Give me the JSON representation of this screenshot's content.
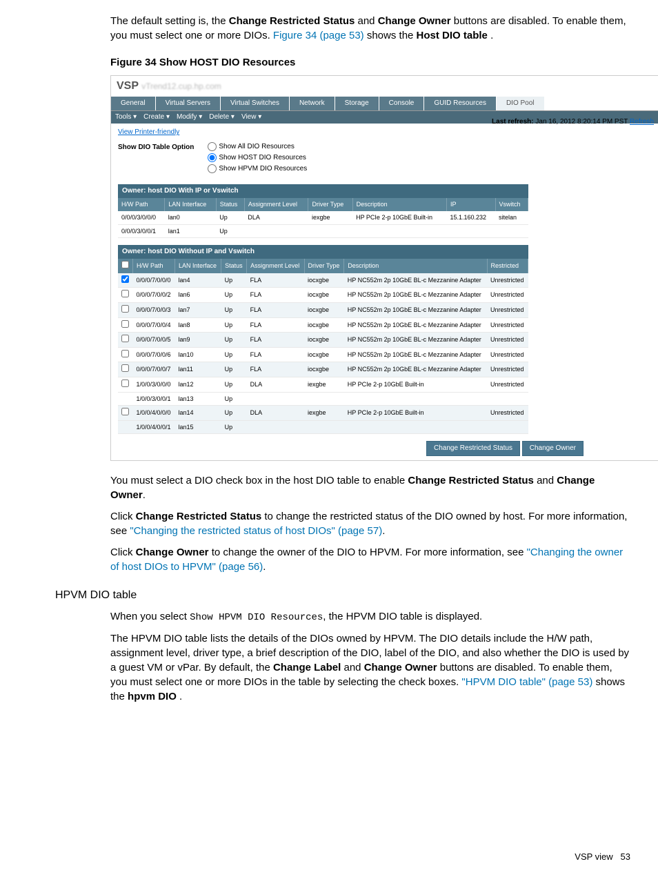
{
  "intro_p1_a": "The default setting is, the ",
  "intro_p1_b": "Change Restricted Status",
  "intro_p1_c": " and ",
  "intro_p1_d": "Change Owner",
  "intro_p1_e": " buttons are disabled. To enable them, you must select one or more DIOs. ",
  "intro_p1_link": "Figure 34 (page 53)",
  "intro_p1_f": " shows the ",
  "intro_p1_g": "Host DIO table",
  "intro_p1_h": " .",
  "fig_caption": "Figure 34 Show HOST DIO Resources",
  "vsp_title": "VSP",
  "vsp_sub": "vTrend12.cup.hp.com",
  "tabs": [
    "General",
    "Virtual Servers",
    "Virtual Switches",
    "Network",
    "Storage",
    "Console",
    "GUID Resources",
    "DIO Pool"
  ],
  "menubar": [
    "Tools  ▾",
    "Create  ▾",
    "Modify  ▾",
    "Delete  ▾",
    "View  ▾"
  ],
  "printer_friendly": "View Printer-friendly",
  "last_refresh_label": "Last refresh: ",
  "last_refresh_time": "Jan 16, 2012 8:20:14 PM PST ",
  "refresh_link": "Refresh",
  "option_label": "Show DIO Table Option",
  "radio_opts": [
    "Show All DIO Resources",
    "Show HOST DIO Resources",
    "Show HPVM DIO Resources"
  ],
  "table1_title": "Owner: host DIO With IP or Vswitch",
  "table1_headers": [
    "H/W Path",
    "LAN Interface",
    "Status",
    "Assignment Level",
    "Driver Type",
    "Description",
    "IP",
    "Vswitch"
  ],
  "table1_rows": [
    [
      "0/0/0/3/0/0/0",
      "lan0",
      "Up",
      "DLA",
      "iexgbe",
      "HP PCIe 2-p 10GbE Built-in",
      "15.1.160.232",
      "sitelan"
    ],
    [
      "0/0/0/3/0/0/1",
      "lan1",
      "Up",
      "",
      "",
      "",
      "",
      ""
    ]
  ],
  "table2_title": "Owner: host DIO Without IP and Vswitch",
  "table2_headers": [
    "",
    "H/W Path",
    "LAN Interface",
    "Status",
    "Assignment Level",
    "Driver Type",
    "Description",
    "Restricted"
  ],
  "table2_rows": [
    {
      "c": true,
      "alt": true,
      "cells": [
        "0/0/0/7/0/0/0",
        "lan4",
        "Up",
        "FLA",
        "iocxgbe",
        "HP NC552m 2p 10GbE BL-c Mezzanine Adapter",
        "Unrestricted"
      ]
    },
    {
      "c": false,
      "alt": false,
      "cells": [
        "0/0/0/7/0/0/2",
        "lan6",
        "Up",
        "FLA",
        "iocxgbe",
        "HP NC552m 2p 10GbE BL-c Mezzanine Adapter",
        "Unrestricted"
      ]
    },
    {
      "c": false,
      "alt": true,
      "cells": [
        "0/0/0/7/0/0/3",
        "lan7",
        "Up",
        "FLA",
        "iocxgbe",
        "HP NC552m 2p 10GbE BL-c Mezzanine Adapter",
        "Unrestricted"
      ]
    },
    {
      "c": false,
      "alt": false,
      "cells": [
        "0/0/0/7/0/0/4",
        "lan8",
        "Up",
        "FLA",
        "iocxgbe",
        "HP NC552m 2p 10GbE BL-c Mezzanine Adapter",
        "Unrestricted"
      ]
    },
    {
      "c": false,
      "alt": true,
      "cells": [
        "0/0/0/7/0/0/5",
        "lan9",
        "Up",
        "FLA",
        "iocxgbe",
        "HP NC552m 2p 10GbE BL-c Mezzanine Adapter",
        "Unrestricted"
      ]
    },
    {
      "c": false,
      "alt": false,
      "cells": [
        "0/0/0/7/0/0/6",
        "lan10",
        "Up",
        "FLA",
        "iocxgbe",
        "HP NC552m 2p 10GbE BL-c Mezzanine Adapter",
        "Unrestricted"
      ]
    },
    {
      "c": false,
      "alt": true,
      "cells": [
        "0/0/0/7/0/0/7",
        "lan11",
        "Up",
        "FLA",
        "iocxgbe",
        "HP NC552m 2p 10GbE BL-c Mezzanine Adapter",
        "Unrestricted"
      ]
    },
    {
      "c": false,
      "alt": false,
      "cells": [
        "1/0/0/3/0/0/0",
        "lan12",
        "Up",
        "DLA",
        "iexgbe",
        "HP PCIe 2-p 10GbE Built-in",
        "Unrestricted"
      ]
    },
    {
      "c": null,
      "alt": false,
      "cells": [
        "1/0/0/3/0/0/1",
        "lan13",
        "Up",
        "",
        "",
        "",
        ""
      ]
    },
    {
      "c": false,
      "alt": true,
      "cells": [
        "1/0/0/4/0/0/0",
        "lan14",
        "Up",
        "DLA",
        "iexgbe",
        "HP PCIe 2-p 10GbE Built-in",
        "Unrestricted"
      ]
    },
    {
      "c": null,
      "alt": true,
      "cells": [
        "1/0/0/4/0/0/1",
        "lan15",
        "Up",
        "",
        "",
        "",
        ""
      ]
    }
  ],
  "btn_restrict": "Change Restricted Status",
  "btn_owner": "Change Owner",
  "post_p1_a": "You must select a DIO check box in the host DIO table to enable ",
  "post_p1_b": "Change Restricted Status",
  "post_p1_c": " and ",
  "post_p1_d": "Change Owner",
  "post_p1_e": ".",
  "post_p2_a": "Click ",
  "post_p2_b": "Change Restricted Status",
  "post_p2_c": " to change the restricted status of the DIO owned by host. For more information, see ",
  "post_p2_link": "\"Changing the restricted status of host DIOs\" (page 57)",
  "post_p2_d": ".",
  "post_p3_a": "Click ",
  "post_p3_b": "Change Owner",
  "post_p3_c": " to change the owner of the DIO to HPVM. For more information, see ",
  "post_p3_link": "\"Changing the owner of host DIOs to HPVM\" (page 56)",
  "post_p3_d": ".",
  "sec_header": "HPVM DIO table",
  "hpvm_p1_a": "When you select ",
  "hpvm_p1_mono": "Show HPVM DIO Resources",
  "hpvm_p1_b": ", the HPVM DIO table is displayed.",
  "hpvm_p2_a": "The HPVM DIO table lists the details of the DIOs owned by HPVM. The DIO details include the H/W path, assignment level, driver type, a brief description of the DIO, label of the DIO, and also whether the DIO is used by a guest VM or vPar. By default, the ",
  "hpvm_p2_b": "Change Label",
  "hpvm_p2_c": " and ",
  "hpvm_p2_d": "Change Owner",
  "hpvm_p2_e": " buttons are disabled. To enable them, you must select one or more DIOs in the table by selecting the check boxes. ",
  "hpvm_p2_link": "\"HPVM DIO table\" (page 53)",
  "hpvm_p2_f": " shows the ",
  "hpvm_p2_g": "hpvm DIO",
  "hpvm_p2_h": " .",
  "footer_label": "VSP view",
  "footer_page": "53"
}
